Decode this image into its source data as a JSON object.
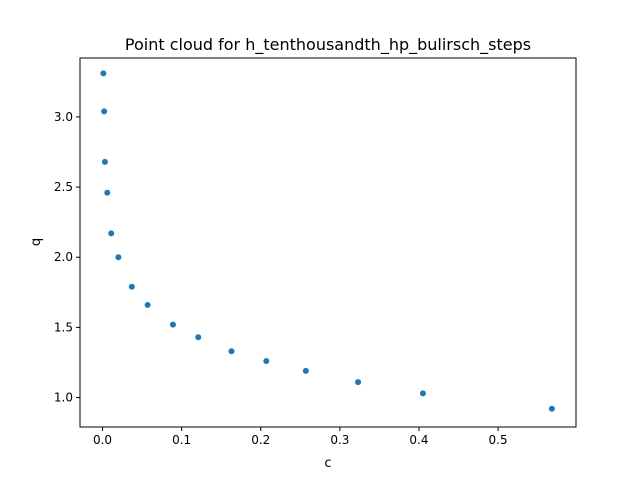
{
  "chart_data": {
    "type": "scatter",
    "title": "Point cloud for h_tenthousandth_hp_bulirsch_steps",
    "xlabel": "c",
    "ylabel": "q",
    "xlim": [
      -0.0285,
      0.5985
    ],
    "ylim": [
      0.79,
      3.42
    ],
    "xticks": [
      0.0,
      0.1,
      0.2,
      0.3,
      0.4,
      0.5
    ],
    "xtick_labels": [
      "0.0",
      "0.1",
      "0.2",
      "0.3",
      "0.4",
      "0.5"
    ],
    "yticks": [
      1.0,
      1.5,
      2.0,
      2.5,
      3.0
    ],
    "ytick_labels": [
      "1.0",
      "1.5",
      "2.0",
      "2.5",
      "3.0"
    ],
    "grid": false,
    "color": "#1f77b4",
    "points": [
      {
        "x": 0.001,
        "y": 3.31
      },
      {
        "x": 0.002,
        "y": 3.04
      },
      {
        "x": 0.003,
        "y": 2.68
      },
      {
        "x": 0.006,
        "y": 2.46
      },
      {
        "x": 0.011,
        "y": 2.17
      },
      {
        "x": 0.02,
        "y": 2.0
      },
      {
        "x": 0.037,
        "y": 1.79
      },
      {
        "x": 0.057,
        "y": 1.66
      },
      {
        "x": 0.089,
        "y": 1.52
      },
      {
        "x": 0.121,
        "y": 1.43
      },
      {
        "x": 0.163,
        "y": 1.33
      },
      {
        "x": 0.207,
        "y": 1.26
      },
      {
        "x": 0.257,
        "y": 1.19
      },
      {
        "x": 0.323,
        "y": 1.11
      },
      {
        "x": 0.405,
        "y": 1.03
      },
      {
        "x": 0.568,
        "y": 0.92
      }
    ]
  }
}
